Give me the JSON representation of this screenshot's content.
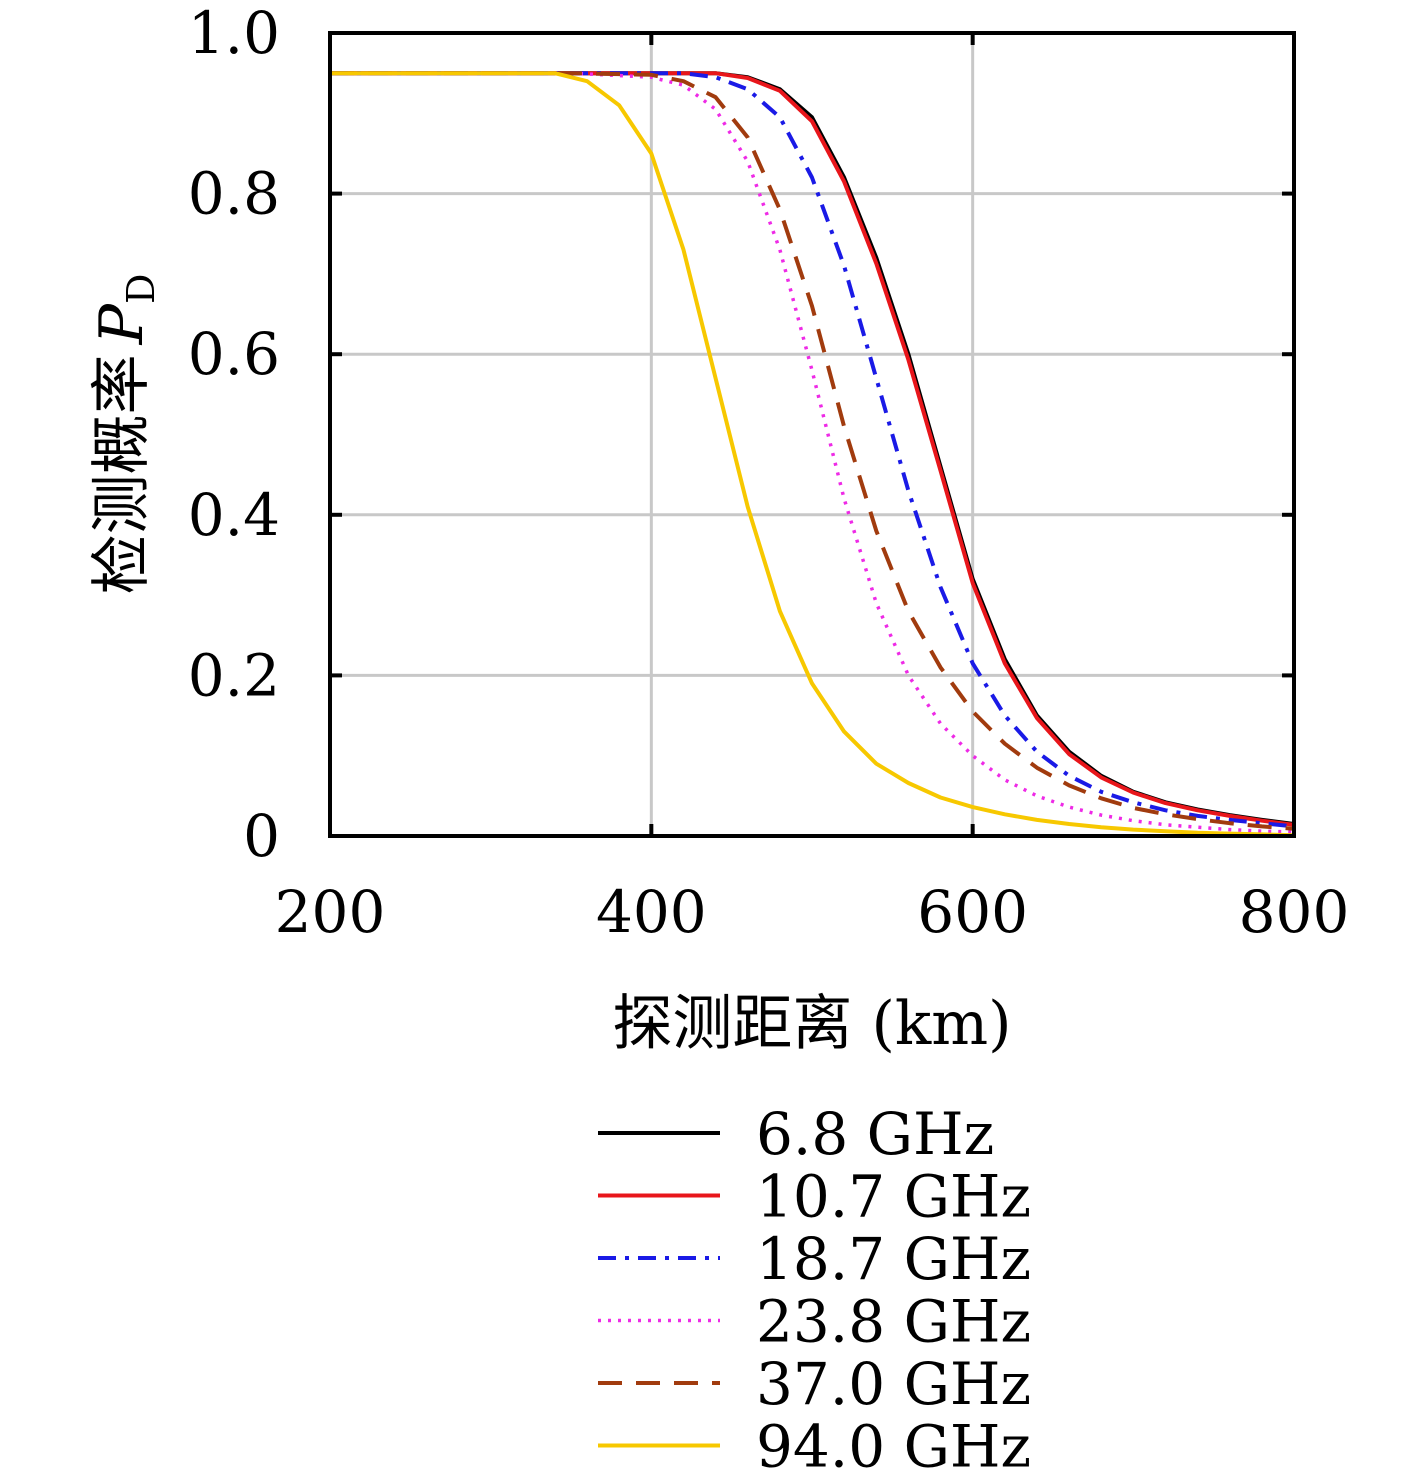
{
  "chart_data": {
    "type": "line",
    "xlabel": "探测距离 (km)",
    "ylabel": "检测概率",
    "ylabel_symbol": "P",
    "ylabel_subscript": "D",
    "xlim": [
      200,
      800
    ],
    "ylim": [
      0,
      1.0
    ],
    "xticks": [
      "200",
      "400",
      "600",
      "800"
    ],
    "yticks": [
      "0",
      "0.2",
      "0.4",
      "0.6",
      "0.8",
      "1.0"
    ],
    "grid": true,
    "legend_position": "below",
    "series": [
      {
        "name": "6.8 GHz",
        "color": "#000000",
        "dash": "solid",
        "x": [
          200,
          350,
          400,
          420,
          440,
          460,
          480,
          500,
          520,
          540,
          560,
          580,
          600,
          620,
          640,
          660,
          680,
          700,
          720,
          740,
          760,
          780,
          800
        ],
        "y": [
          0.95,
          0.95,
          0.95,
          0.95,
          0.95,
          0.945,
          0.93,
          0.895,
          0.82,
          0.72,
          0.6,
          0.46,
          0.32,
          0.22,
          0.15,
          0.105,
          0.075,
          0.055,
          0.042,
          0.033,
          0.026,
          0.02,
          0.015
        ]
      },
      {
        "name": "10.7 GHz",
        "color": "#e8161b",
        "dash": "solid",
        "x": [
          200,
          350,
          400,
          420,
          440,
          460,
          480,
          500,
          520,
          540,
          560,
          580,
          600,
          620,
          640,
          660,
          680,
          700,
          720,
          740,
          760,
          780,
          800
        ],
        "y": [
          0.95,
          0.95,
          0.95,
          0.95,
          0.95,
          0.944,
          0.928,
          0.89,
          0.815,
          0.713,
          0.593,
          0.455,
          0.315,
          0.215,
          0.147,
          0.102,
          0.073,
          0.054,
          0.041,
          0.032,
          0.025,
          0.019,
          0.014
        ]
      },
      {
        "name": "18.7 GHz",
        "color": "#1a1ae6",
        "dash": "dashdot",
        "x": [
          200,
          350,
          400,
          420,
          440,
          460,
          480,
          500,
          520,
          540,
          560,
          580,
          600,
          620,
          640,
          660,
          680,
          700,
          720,
          740,
          760,
          780,
          800
        ],
        "y": [
          0.95,
          0.95,
          0.95,
          0.95,
          0.945,
          0.93,
          0.895,
          0.82,
          0.71,
          0.57,
          0.43,
          0.31,
          0.215,
          0.15,
          0.105,
          0.075,
          0.055,
          0.042,
          0.032,
          0.025,
          0.02,
          0.016,
          0.012
        ]
      },
      {
        "name": "23.8 GHz",
        "color": "#ee2ae6",
        "dash": "dotted",
        "x": [
          200,
          350,
          400,
          420,
          440,
          460,
          480,
          500,
          520,
          540,
          560,
          580,
          600,
          620,
          640,
          660,
          680,
          700,
          720,
          740,
          760,
          780,
          800
        ],
        "y": [
          0.95,
          0.95,
          0.945,
          0.935,
          0.905,
          0.84,
          0.73,
          0.58,
          0.42,
          0.29,
          0.2,
          0.14,
          0.1,
          0.07,
          0.05,
          0.036,
          0.026,
          0.019,
          0.014,
          0.011,
          0.008,
          0.006,
          0.005
        ]
      },
      {
        "name": "37.0 GHz",
        "color": "#a13b0e",
        "dash": "dashed",
        "x": [
          200,
          350,
          400,
          420,
          440,
          460,
          480,
          500,
          520,
          540,
          560,
          580,
          600,
          620,
          640,
          660,
          680,
          700,
          720,
          740,
          760,
          780,
          800
        ],
        "y": [
          0.95,
          0.95,
          0.948,
          0.94,
          0.92,
          0.87,
          0.78,
          0.66,
          0.51,
          0.38,
          0.28,
          0.21,
          0.155,
          0.115,
          0.085,
          0.063,
          0.047,
          0.035,
          0.027,
          0.021,
          0.016,
          0.012,
          0.009
        ]
      },
      {
        "name": "94.0 GHz",
        "color": "#f7c800",
        "dash": "solid",
        "x": [
          200,
          340,
          360,
          380,
          400,
          420,
          440,
          460,
          480,
          500,
          520,
          540,
          560,
          580,
          600,
          620,
          640,
          660,
          680,
          700,
          720,
          740,
          760,
          780,
          800
        ],
        "y": [
          0.95,
          0.95,
          0.94,
          0.91,
          0.85,
          0.73,
          0.57,
          0.41,
          0.28,
          0.19,
          0.13,
          0.09,
          0.066,
          0.048,
          0.036,
          0.027,
          0.02,
          0.015,
          0.011,
          0.008,
          0.006,
          0.004,
          0.003,
          0.002,
          0.001
        ]
      }
    ]
  }
}
